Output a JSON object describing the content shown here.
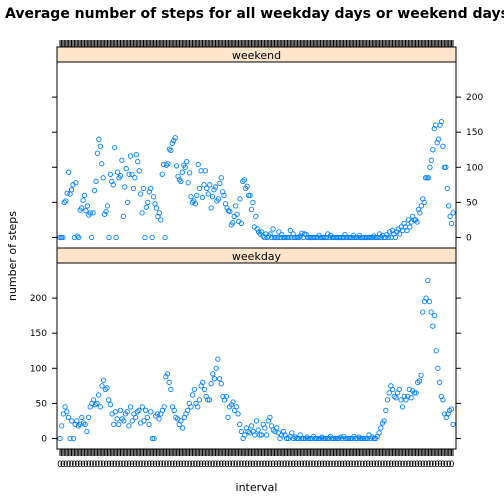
{
  "chart_data": {
    "type": "scatter",
    "title": "Average number of steps for all weekday days or weekend days",
    "xlabel": "interval",
    "ylabel": "number of steps",
    "point_color": "#0080ff",
    "strip_color": "#ffe5cc",
    "x_tick_text": "0",
    "panels": [
      {
        "name": "weekend",
        "ylim": [
          -15,
          250
        ],
        "yticks": [
          0,
          50,
          100,
          150,
          200
        ],
        "y_axis_side": "right",
        "values": [
          0,
          0,
          0,
          50,
          52,
          63,
          93,
          62,
          68,
          75,
          0,
          78,
          2,
          0,
          39,
          42,
          53,
          60,
          38,
          45,
          32,
          35,
          0,
          35,
          67,
          80,
          120,
          140,
          130,
          105,
          85,
          33,
          37,
          45,
          0,
          90,
          80,
          75,
          128,
          0,
          93,
          85,
          88,
          110,
          30,
          72,
          98,
          50,
          90,
          116,
          90,
          70,
          85,
          118,
          108,
          95,
          62,
          35,
          70,
          0,
          43,
          50,
          65,
          70,
          0,
          58,
          48,
          42,
          30,
          35,
          25,
          90,
          104,
          0,
          103,
          105,
          126,
          124,
          134,
          138,
          142,
          102,
          87,
          82,
          80,
          93,
          103,
          100,
          108,
          78,
          92,
          58,
          50,
          52,
          48,
          60,
          104,
          70,
          95,
          57,
          75,
          95,
          70,
          62,
          75,
          42,
          58,
          68,
          72,
          52,
          55,
          77,
          85,
          65,
          60,
          48,
          42,
          38,
          37,
          18,
          21,
          30,
          45,
          33,
          23,
          55,
          20,
          80,
          82,
          70,
          73,
          60,
          60,
          40,
          50,
          15,
          30,
          12,
          8,
          5,
          8,
          2,
          0,
          5,
          0,
          2,
          5,
          0,
          12,
          0,
          0,
          0,
          8,
          0,
          4,
          0,
          0,
          0,
          0,
          0,
          10,
          0,
          5,
          0,
          0,
          0,
          0,
          2,
          6,
          0,
          5,
          4,
          0,
          0,
          0,
          0,
          0,
          0,
          0,
          0,
          3,
          0,
          0,
          0,
          0,
          0,
          5,
          0,
          3,
          0,
          0,
          0,
          0,
          0,
          0,
          0,
          0,
          0,
          4,
          0,
          0,
          0,
          0,
          0,
          3,
          0,
          0,
          0,
          3,
          0,
          0,
          0,
          0,
          0,
          0,
          0,
          0,
          0,
          2,
          0,
          0,
          0,
          5,
          0,
          3,
          0,
          0,
          4,
          0,
          8,
          0,
          10,
          5,
          0,
          8,
          12,
          5,
          15,
          10,
          20,
          15,
          10,
          25,
          15,
          22,
          30,
          25,
          25,
          22,
          40,
          35,
          45,
          55,
          50,
          85,
          85,
          85,
          100,
          110,
          125,
          155,
          160,
          135,
          140,
          160,
          165,
          130,
          100,
          100,
          70,
          45,
          30,
          20,
          35
        ],
        "y": "number of steps"
      },
      {
        "name": "weekday",
        "ylim": [
          -15,
          250
        ],
        "yticks": [
          0,
          50,
          100,
          150,
          200
        ],
        "y_axis_side": "left",
        "values": [
          0,
          18,
          35,
          45,
          38,
          30,
          0,
          25,
          0,
          20,
          25,
          18,
          20,
          30,
          22,
          20,
          10,
          30,
          45,
          50,
          55,
          48,
          50,
          62,
          45,
          75,
          83,
          70,
          72,
          55,
          48,
          35,
          20,
          38,
          28,
          20,
          40,
          28,
          25,
          35,
          38,
          18,
          45,
          25,
          35,
          30,
          38,
          40,
          22,
          45,
          25,
          40,
          30,
          20,
          38,
          0,
          0,
          32,
          35,
          28,
          35,
          40,
          45,
          88,
          92,
          80,
          70,
          45,
          40,
          30,
          28,
          20,
          25,
          15,
          30,
          35,
          40,
          50,
          45,
          62,
          70,
          50,
          45,
          55,
          75,
          80,
          70,
          60,
          55,
          55,
          78,
          92,
          85,
          100,
          113,
          85,
          78,
          60,
          55,
          60,
          30,
          45,
          48,
          52,
          40,
          45,
          35,
          20,
          10,
          0,
          5,
          15,
          10,
          8,
          18,
          10,
          5,
          25,
          12,
          5,
          5,
          20,
          15,
          5,
          25,
          30,
          18,
          12,
          10,
          15,
          8,
          0,
          5,
          10,
          5,
          0,
          0,
          3,
          8,
          0,
          2,
          0,
          0,
          5,
          0,
          0,
          0,
          2,
          0,
          0,
          0,
          3,
          0,
          0,
          0,
          0,
          2,
          0,
          0,
          0,
          0,
          3,
          0,
          0,
          0,
          0,
          0,
          2,
          0,
          3,
          0,
          0,
          0,
          0,
          0,
          3,
          0,
          0,
          2,
          0,
          0,
          0,
          0,
          0,
          5,
          0,
          2,
          0,
          0,
          3,
          8,
          15,
          22,
          25,
          40,
          55,
          65,
          75,
          70,
          60,
          58,
          65,
          70,
          55,
          45,
          60,
          55,
          60,
          70,
          58,
          68,
          65,
          65,
          80,
          82,
          90,
          180,
          195,
          200,
          225,
          195,
          180,
          160,
          175,
          125,
          100,
          80,
          60,
          55,
          35,
          30,
          35,
          40,
          42,
          20
        ]
      }
    ]
  }
}
